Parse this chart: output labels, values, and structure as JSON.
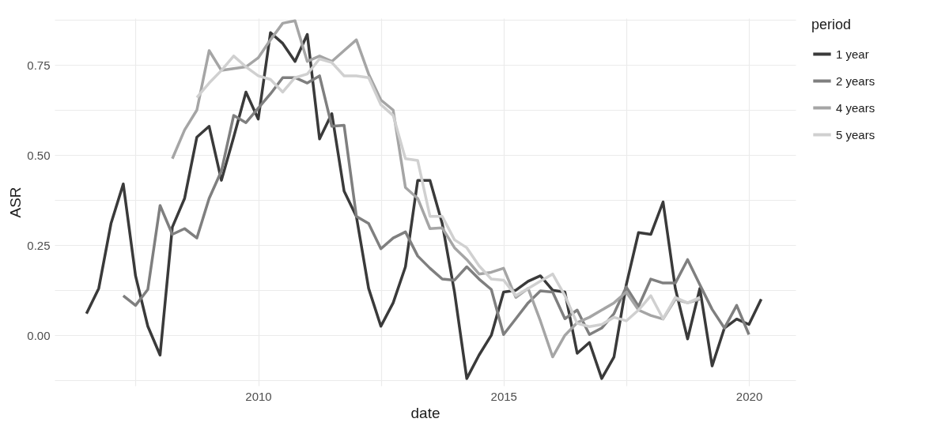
{
  "chart_data": {
    "type": "line",
    "xlabel": "date",
    "ylabel": "ASR",
    "legend_title": "period",
    "legend": "right",
    "grid": true,
    "line_style": "solid",
    "xlim": [
      2005.85,
      2020.95
    ],
    "ylim": [
      -0.14,
      0.88
    ],
    "xticks": [
      {
        "value": 2007.5,
        "label": null
      },
      2010,
      {
        "value": 2012.5,
        "label": null
      },
      2015,
      {
        "value": 2017.5,
        "label": null
      },
      2020
    ],
    "yticks": [
      {
        "value": -0.125,
        "label": null
      },
      {
        "value": 0,
        "label": "0.00"
      },
      {
        "value": 0.125,
        "label": null
      },
      {
        "value": 0.25,
        "label": "0.25"
      },
      {
        "value": 0.375,
        "label": null
      },
      {
        "value": 0.5,
        "label": "0.50"
      },
      {
        "value": 0.625,
        "label": null
      },
      {
        "value": 0.75,
        "label": "0.75"
      },
      {
        "value": 0.875,
        "label": null
      }
    ],
    "series": [
      {
        "name": "1 year",
        "color": "#3a3a3a",
        "x": [
          2006.5,
          2006.75,
          2007,
          2007.25,
          2007.5,
          2007.75,
          2008,
          2008.25,
          2008.5,
          2008.75,
          2009,
          2009.25,
          2009.5,
          2009.75,
          2010,
          2010.25,
          2010.5,
          2010.75,
          2011,
          2011.25,
          2011.5,
          2011.75,
          2012,
          2012.25,
          2012.5,
          2012.75,
          2013,
          2013.25,
          2013.5,
          2013.75,
          2014,
          2014.25,
          2014.5,
          2014.75,
          2015,
          2015.25,
          2015.5,
          2015.75,
          2016,
          2016.25,
          2016.5,
          2016.75,
          2017,
          2017.25,
          2017.5,
          2017.75,
          2018,
          2018.25,
          2018.5,
          2018.75,
          2019,
          2019.25,
          2019.5,
          2019.75,
          2020,
          2020.25
        ],
        "values": [
          0.06,
          0.13,
          0.31,
          0.42,
          0.165,
          0.025,
          -0.055,
          0.3,
          0.38,
          0.55,
          0.58,
          0.43,
          0.55,
          0.675,
          0.6,
          0.84,
          0.81,
          0.76,
          0.835,
          0.545,
          0.615,
          0.4,
          0.33,
          0.13,
          0.025,
          0.09,
          0.19,
          0.43,
          0.43,
          0.31,
          0.12,
          -0.12,
          -0.055,
          0,
          0.12,
          0.125,
          0.15,
          0.165,
          0.125,
          0.12,
          -0.05,
          -0.02,
          -0.12,
          -0.06,
          0.14,
          0.285,
          0.28,
          0.37,
          0.13,
          -0.01,
          0.13,
          -0.085,
          0.02,
          0.045,
          0.03,
          0.1
        ]
      },
      {
        "name": "2 years",
        "color": "#7f7f7f",
        "x": [
          2007.25,
          2007.5,
          2007.75,
          2008,
          2008.25,
          2008.5,
          2008.75,
          2009,
          2009.25,
          2009.5,
          2009.75,
          2010,
          2010.25,
          2010.5,
          2010.75,
          2011,
          2011.25,
          2011.5,
          2011.75,
          2012,
          2012.25,
          2012.5,
          2012.75,
          2013,
          2013.25,
          2013.5,
          2013.75,
          2014,
          2014.25,
          2014.5,
          2014.75,
          2015,
          2015.25,
          2015.5,
          2015.75,
          2016,
          2016.25,
          2016.5,
          2016.75,
          2017,
          2017.25,
          2017.5,
          2017.75,
          2018,
          2018.25,
          2018.5,
          2018.75,
          2019,
          2019.25,
          2019.5,
          2019.75,
          2020
        ],
        "values": [
          0.11,
          0.083,
          0.127,
          0.36,
          0.28,
          0.296,
          0.27,
          0.38,
          0.456,
          0.61,
          0.59,
          0.63,
          0.67,
          0.715,
          0.715,
          0.7,
          0.72,
          0.58,
          0.583,
          0.33,
          0.31,
          0.24,
          0.27,
          0.287,
          0.22,
          0.186,
          0.156,
          0.153,
          0.19,
          0.156,
          0.127,
          0.002,
          0.046,
          0.09,
          0.123,
          0.12,
          0.046,
          0.07,
          0.002,
          0.02,
          0.06,
          0.134,
          0.08,
          0.156,
          0.145,
          0.145,
          0.21,
          0.14,
          0.072,
          0.02,
          0.083,
          0.002
        ]
      },
      {
        "name": "4 years",
        "color": "#a5a5a5",
        "x": [
          2008.25,
          2008.5,
          2008.75,
          2009,
          2009.25,
          2009.5,
          2009.75,
          2010,
          2010.25,
          2010.5,
          2010.75,
          2011,
          2011.25,
          2011.5,
          2011.75,
          2012,
          2012.25,
          2012.5,
          2012.75,
          2013,
          2013.25,
          2013.5,
          2013.75,
          2014,
          2014.25,
          2014.5,
          2014.75,
          2015,
          2015.25,
          2015.5,
          2015.75,
          2016,
          2016.25,
          2016.5,
          2016.75,
          2017,
          2017.25,
          2017.5,
          2017.75,
          2018,
          2018.25,
          2018.5,
          2018.75,
          2019
        ],
        "values": [
          0.49,
          0.57,
          0.625,
          0.79,
          0.735,
          0.74,
          0.745,
          0.77,
          0.82,
          0.866,
          0.873,
          0.76,
          0.775,
          0.76,
          0.79,
          0.82,
          0.725,
          0.653,
          0.625,
          0.41,
          0.38,
          0.296,
          0.298,
          0.243,
          0.21,
          0.17,
          0.175,
          0.186,
          0.105,
          0.13,
          0.04,
          -0.06,
          0,
          0.035,
          0.05,
          0.07,
          0.09,
          0.12,
          0.07,
          0.055,
          0.045,
          0.1,
          0.09,
          0.1
        ]
      },
      {
        "name": "5 years",
        "color": "#d0d0d0",
        "x": [
          2008.75,
          2009,
          2009.25,
          2009.5,
          2009.75,
          2010,
          2010.25,
          2010.5,
          2010.75,
          2011,
          2011.25,
          2011.5,
          2011.75,
          2012,
          2012.25,
          2012.5,
          2012.75,
          2013,
          2013.25,
          2013.5,
          2013.75,
          2014,
          2014.25,
          2014.5,
          2014.75,
          2015,
          2015.25,
          2015.5,
          2015.75,
          2016,
          2016.25,
          2016.5,
          2016.75,
          2017,
          2017.25,
          2017.5,
          2017.75,
          2018,
          2018.25,
          2018.5,
          2018.75,
          2019
        ],
        "values": [
          0.66,
          0.7,
          0.735,
          0.775,
          0.745,
          0.72,
          0.71,
          0.675,
          0.715,
          0.725,
          0.767,
          0.757,
          0.72,
          0.72,
          0.715,
          0.64,
          0.61,
          0.49,
          0.485,
          0.33,
          0.33,
          0.265,
          0.243,
          0.193,
          0.156,
          0.153,
          0.11,
          0.13,
          0.15,
          0.17,
          0.11,
          0.033,
          0.024,
          0.03,
          0.05,
          0.04,
          0.07,
          0.11,
          0.046,
          0.105,
          0.09,
          0.105
        ]
      }
    ]
  }
}
